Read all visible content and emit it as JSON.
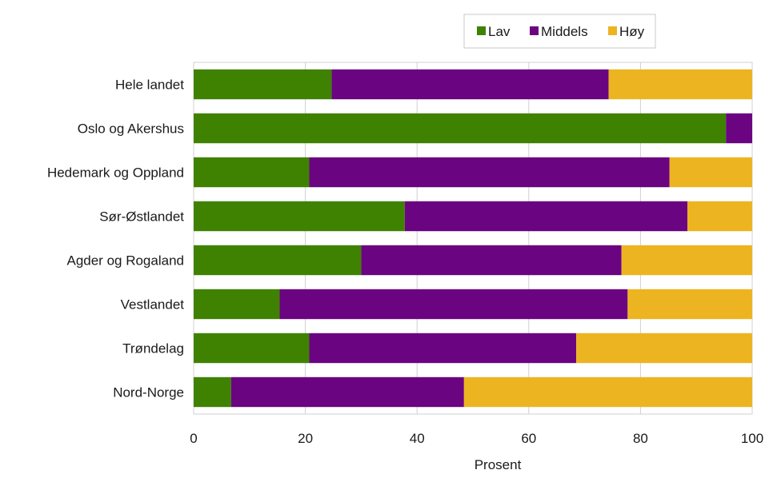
{
  "chart_data": {
    "type": "bar",
    "orientation": "horizontal",
    "stacked": true,
    "xlabel": "Prosent",
    "xlim": [
      0,
      100
    ],
    "x_ticks": [
      0,
      20,
      40,
      60,
      80,
      100
    ],
    "grid": "vertical",
    "legend_position": "top-right",
    "categories": [
      "Hele landet",
      "Oslo og Akershus",
      "Hedemark og Oppland",
      "Sør-Østlandet",
      "Agder og Rogaland",
      "Vestlandet",
      "Trøndelag",
      "Nord-Norge"
    ],
    "series": [
      {
        "name": "Lav",
        "color": "#3f8201",
        "values": [
          24.7,
          95.3,
          20.7,
          37.8,
          30.0,
          15.4,
          20.7,
          6.7
        ]
      },
      {
        "name": "Middels",
        "color": "#6a0480",
        "values": [
          49.6,
          4.7,
          64.5,
          50.6,
          46.6,
          62.3,
          47.8,
          41.7
        ]
      },
      {
        "name": "Høy",
        "color": "#edb421",
        "values": [
          25.7,
          0,
          14.8,
          11.6,
          23.4,
          22.3,
          31.5,
          51.6
        ]
      }
    ]
  }
}
